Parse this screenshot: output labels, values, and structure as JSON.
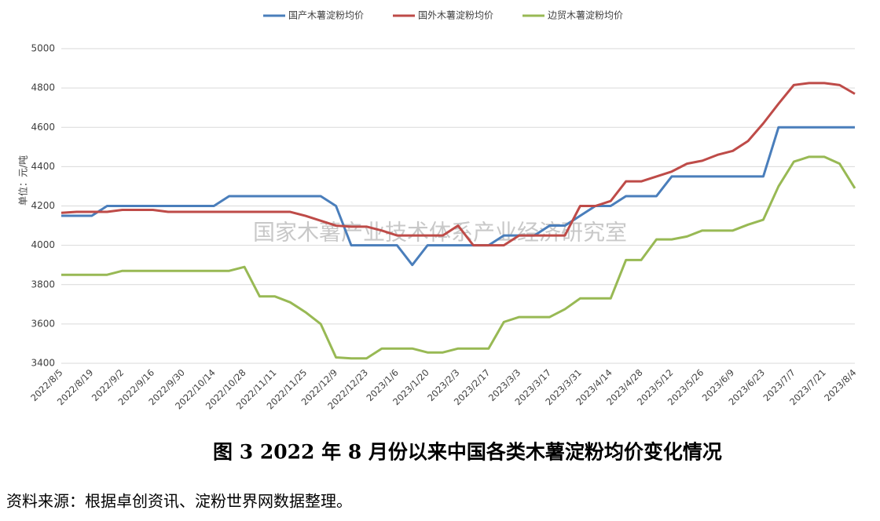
{
  "chart_data": {
    "type": "line",
    "y_label": "单位：元/吨",
    "watermark": "国家木薯产业技术体系产业经济研究室",
    "caption": "图 3   2022 年 8 月份以来中国各类木薯淀粉均价变化情况",
    "source": "资料来源：根据卓创资讯、淀粉世界网数据整理。",
    "categories": [
      "2022/8/5",
      null,
      "2022/8/19",
      null,
      "2022/9/2",
      null,
      "2022/9/16",
      null,
      "2022/9/30",
      null,
      "2022/10/14",
      null,
      "2022/10/28",
      null,
      "2022/11/11",
      null,
      "2022/11/25",
      null,
      "2022/12/9",
      null,
      "2022/12/23",
      null,
      "2023/1/6",
      null,
      "2023/1/20",
      null,
      "2023/2/3",
      null,
      "2023/2/17",
      null,
      "2023/3/3",
      null,
      "2023/3/17",
      null,
      "2023/3/31",
      null,
      "2023/4/14",
      null,
      "2023/4/28",
      null,
      "2023/5/12",
      null,
      "2023/5/26",
      null,
      "2023/6/9",
      null,
      "2023/6/23",
      null,
      "2023/7/7",
      null,
      "2023/7/21",
      null,
      "2023/8/4"
    ],
    "series": [
      {
        "name": "国产木薯淀粉均价",
        "color": "#4a7ebb",
        "values": [
          4150,
          4150,
          4150,
          4200,
          4200,
          4200,
          4200,
          4200,
          4200,
          4200,
          4200,
          4250,
          4250,
          4250,
          4250,
          4250,
          4250,
          4250,
          4200,
          4000,
          4000,
          4000,
          4000,
          3900,
          4000,
          4000,
          4000,
          4000,
          4000,
          4050,
          4050,
          4050,
          4100,
          4100,
          4150,
          4200,
          4200,
          4250,
          4250,
          4250,
          4350,
          4350,
          4350,
          4350,
          4350,
          4350,
          4350,
          4600,
          4600,
          4600,
          4600,
          4600,
          4600
        ]
      },
      {
        "name": "国外木薯淀粉均价",
        "color": "#be4b48",
        "values": [
          4165,
          4170,
          4170,
          4170,
          4180,
          4180,
          4180,
          4170,
          4170,
          4170,
          4170,
          4170,
          4170,
          4170,
          4170,
          4170,
          4150,
          4125,
          4100,
          4095,
          4095,
          4075,
          4050,
          4050,
          4050,
          4050,
          4100,
          4000,
          4000,
          4000,
          4050,
          4050,
          4050,
          4050,
          4200,
          4200,
          4225,
          4325,
          4325,
          4350,
          4375,
          4415,
          4430,
          4460,
          4480,
          4530,
          4620,
          4720,
          4815,
          4825,
          4825,
          4815,
          4770
        ]
      },
      {
        "name": "边贸木薯淀粉均价",
        "color": "#98b954",
        "values": [
          3850,
          3850,
          3850,
          3850,
          3870,
          3870,
          3870,
          3870,
          3870,
          3870,
          3870,
          3870,
          3890,
          3740,
          3740,
          3710,
          3660,
          3600,
          3430,
          3425,
          3425,
          3475,
          3475,
          3475,
          3455,
          3455,
          3475,
          3475,
          3475,
          3610,
          3635,
          3635,
          3635,
          3675,
          3730,
          3730,
          3730,
          3925,
          3925,
          4030,
          4030,
          4045,
          4075,
          4075,
          4075,
          4105,
          4130,
          4300,
          4425,
          4450,
          4450,
          4415,
          4290
        ]
      }
    ],
    "ylim": [
      3400,
      5000
    ],
    "yticks": [
      3400,
      3600,
      3800,
      4000,
      4200,
      4400,
      4600,
      4800,
      5000
    ],
    "grid": true
  }
}
